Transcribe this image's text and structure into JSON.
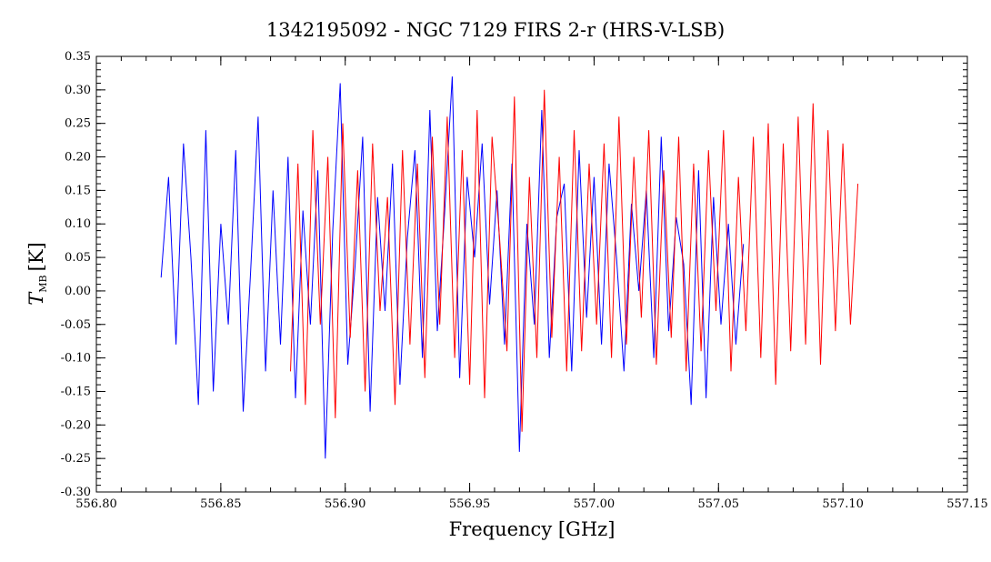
{
  "chart_data": {
    "type": "line",
    "title": "1342195092 - NGC 7129 FIRS 2-r (HRS-V-LSB)",
    "xlabel": "Frequency [GHz]",
    "ylabel": {
      "symbol": "T",
      "subscript": "MB",
      "unit": "[K]"
    },
    "xlim": [
      556.8,
      557.15
    ],
    "ylim": [
      -0.3,
      0.35
    ],
    "xticks": [
      "556.80",
      "556.85",
      "556.90",
      "556.95",
      "557.00",
      "557.05",
      "557.10",
      "557.15"
    ],
    "yticks": [
      "-0.30",
      "-0.25",
      "-0.20",
      "-0.15",
      "-0.10",
      "-0.05",
      "0.00",
      "0.05",
      "0.10",
      "0.15",
      "0.20",
      "0.25",
      "0.30",
      "0.35"
    ],
    "grid": false,
    "series": [
      {
        "color": "#0000ff",
        "x": [
          556.826,
          556.829,
          556.832,
          556.835,
          556.838,
          556.841,
          556.844,
          556.847,
          556.85,
          556.853,
          556.856,
          556.859,
          556.862,
          556.865,
          556.868,
          556.871,
          556.874,
          556.877,
          556.88,
          556.883,
          556.886,
          556.889,
          556.892,
          556.895,
          556.898,
          556.901,
          556.904,
          556.907,
          556.91,
          556.913,
          556.916,
          556.919,
          556.922,
          556.925,
          556.928,
          556.931,
          556.934,
          556.937,
          556.94,
          556.943,
          556.946,
          556.949,
          556.952,
          556.955,
          556.958,
          556.961,
          556.964,
          556.967,
          556.97,
          556.973,
          556.976,
          556.979,
          556.982,
          556.985,
          556.988,
          556.991,
          556.994,
          556.997,
          557.0,
          557.003,
          557.006,
          557.009,
          557.012,
          557.015,
          557.018,
          557.021,
          557.024,
          557.027,
          557.03,
          557.033,
          557.036,
          557.039,
          557.042,
          557.045,
          557.048,
          557.051,
          557.054,
          557.057,
          557.06
        ],
        "y": [
          0.02,
          0.17,
          -0.08,
          0.22,
          0.05,
          -0.17,
          0.24,
          -0.15,
          0.1,
          -0.05,
          0.21,
          -0.18,
          0.03,
          0.26,
          -0.12,
          0.15,
          -0.08,
          0.2,
          -0.16,
          0.12,
          -0.05,
          0.18,
          -0.25,
          0.09,
          0.31,
          -0.11,
          0.04,
          0.23,
          -0.18,
          0.14,
          -0.03,
          0.19,
          -0.14,
          0.08,
          0.21,
          -0.1,
          0.27,
          -0.06,
          0.12,
          0.32,
          -0.13,
          0.17,
          0.05,
          0.22,
          -0.02,
          0.15,
          -0.08,
          0.19,
          -0.24,
          0.1,
          -0.05,
          0.27,
          -0.1,
          0.11,
          0.16,
          -0.12,
          0.21,
          -0.04,
          0.17,
          -0.08,
          0.19,
          0.05,
          -0.12,
          0.13,
          0.0,
          0.15,
          -0.1,
          0.23,
          -0.06,
          0.11,
          0.04,
          -0.17,
          0.18,
          -0.16,
          0.14,
          -0.05,
          0.1,
          -0.08,
          0.07
        ]
      },
      {
        "color": "#ff0000",
        "x": [
          556.878,
          556.881,
          556.884,
          556.887,
          556.89,
          556.893,
          556.896,
          556.899,
          556.902,
          556.905,
          556.908,
          556.911,
          556.914,
          556.917,
          556.92,
          556.923,
          556.926,
          556.929,
          556.932,
          556.935,
          556.938,
          556.941,
          556.944,
          556.947,
          556.95,
          556.953,
          556.956,
          556.959,
          556.962,
          556.965,
          556.968,
          556.971,
          556.974,
          556.977,
          556.98,
          556.983,
          556.986,
          556.989,
          556.992,
          556.995,
          556.998,
          557.001,
          557.004,
          557.007,
          557.01,
          557.013,
          557.016,
          557.019,
          557.022,
          557.025,
          557.028,
          557.031,
          557.034,
          557.037,
          557.04,
          557.043,
          557.046,
          557.049,
          557.052,
          557.055,
          557.058,
          557.061,
          557.064,
          557.067,
          557.07,
          557.073,
          557.076,
          557.079,
          557.082,
          557.085,
          557.088,
          557.091,
          557.094,
          557.097,
          557.1,
          557.103,
          557.106
        ],
        "y": [
          -0.12,
          0.19,
          -0.17,
          0.24,
          -0.05,
          0.2,
          -0.19,
          0.25,
          -0.07,
          0.18,
          -0.15,
          0.22,
          -0.03,
          0.14,
          -0.17,
          0.21,
          -0.08,
          0.19,
          -0.13,
          0.23,
          -0.05,
          0.26,
          -0.1,
          0.21,
          -0.14,
          0.27,
          -0.16,
          0.23,
          0.08,
          -0.09,
          0.29,
          -0.21,
          0.17,
          -0.1,
          0.3,
          -0.07,
          0.2,
          -0.12,
          0.24,
          -0.09,
          0.19,
          -0.05,
          0.22,
          -0.1,
          0.26,
          -0.08,
          0.2,
          -0.04,
          0.24,
          -0.11,
          0.18,
          -0.07,
          0.23,
          -0.12,
          0.19,
          -0.09,
          0.21,
          -0.03,
          0.24,
          -0.12,
          0.17,
          -0.06,
          0.23,
          -0.1,
          0.25,
          -0.14,
          0.22,
          -0.09,
          0.26,
          -0.08,
          0.28,
          -0.11,
          0.24,
          -0.06,
          0.22,
          -0.05,
          0.16
        ]
      }
    ]
  }
}
